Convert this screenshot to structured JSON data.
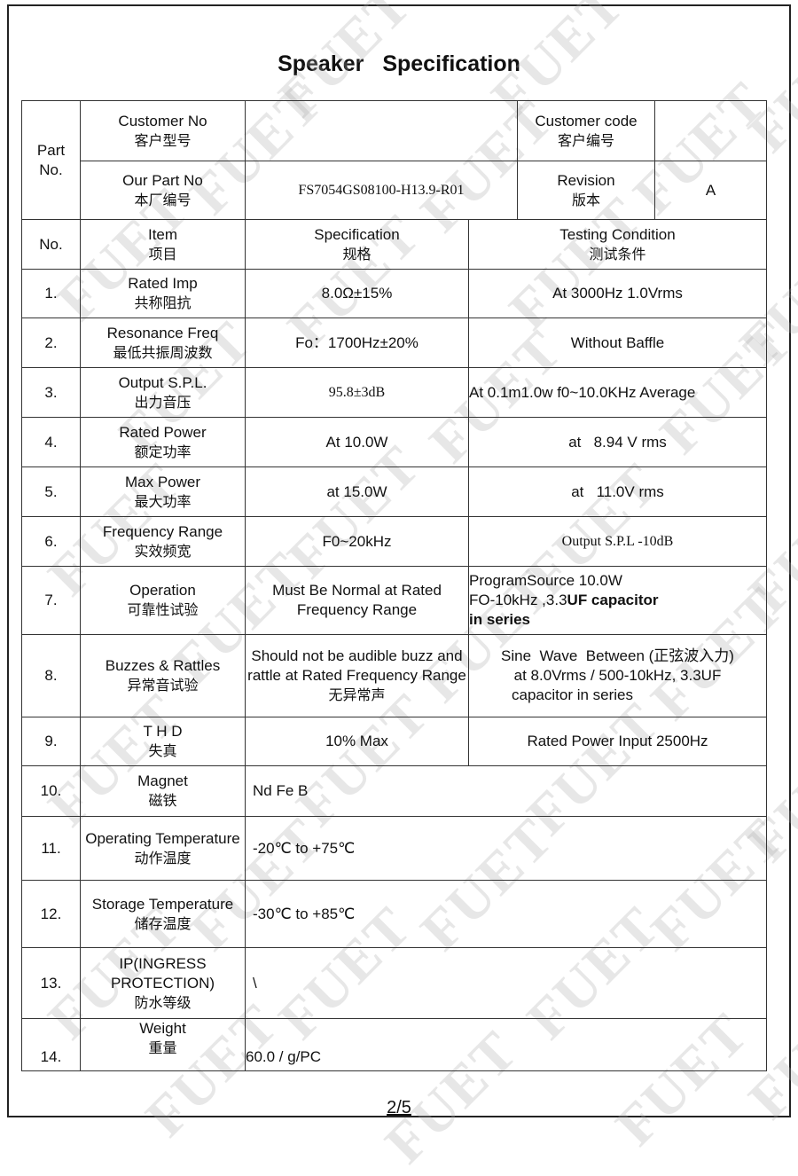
{
  "watermark": "FUET",
  "title": "Speaker Specification",
  "header": {
    "part_no": "Part No.",
    "customer_no": "Customer No",
    "customer_no_cn": "客户型号",
    "customer_no_value": "",
    "customer_code": "Customer code",
    "customer_code_cn": "客户编号",
    "customer_code_value": "",
    "our_part_no": "Our Part No",
    "our_part_no_cn": "本厂编号",
    "our_part_no_value": "FS7054GS08100-H13.9-R01",
    "revision": "Revision",
    "revision_cn": "版本",
    "revision_value": "A"
  },
  "columns": {
    "no": "No.",
    "item": "Item",
    "item_cn": "项目",
    "spec": "Specification",
    "spec_cn": "规格",
    "test": "Testing Condition",
    "test_cn": "测试条件"
  },
  "rows": [
    {
      "no": "1.",
      "item": "Rated Imp",
      "item_cn": "共称阻抗",
      "spec": "8.0Ω±15%",
      "test": "At 3000Hz 1.0Vrms"
    },
    {
      "no": "2.",
      "item": "Resonance Freq",
      "item_cn": "最低共振周波数",
      "spec": "Fo：1700Hz±20%",
      "test": "Without Baffle"
    },
    {
      "no": "3.",
      "item": "Output S.P.L.",
      "item_cn": "出力音压",
      "spec": "95.8±3dB",
      "test": "At 0.1m1.0w f0~10.0KHz Average"
    },
    {
      "no": "4.",
      "item": "Rated Power",
      "item_cn": "额定功率",
      "spec": "At    10.0W",
      "test": "at   8.94 V rms"
    },
    {
      "no": "5.",
      "item": "Max Power",
      "item_cn": "最大功率",
      "spec": "at   15.0W",
      "test": "at   11.0V rms"
    },
    {
      "no": "6.",
      "item": "Frequency Range",
      "item_cn": "实效频宽",
      "spec": "F0~20kHz",
      "test": "Output S.P.L -10dB"
    },
    {
      "no": "7.",
      "item": "Operation",
      "item_cn": "可靠性试验",
      "spec": "Must Be Normal at Rated Frequency Range",
      "test_l1": "ProgramSource  10.0W",
      "test_l2": "FO-10kHz  ,3.3",
      "test_l2b": "UF  capacitor",
      "test_l3": "in series"
    },
    {
      "no": "8.",
      "item": "Buzzes & Rattles",
      "item_cn": "异常音试验",
      "spec": "Should not be audible buzz and rattle at Rated Frequency Range",
      "spec_cn": "无异常声",
      "test_l1": "Sine  Wave  Between (正弦波入力)",
      "test_l2": "at  8.0Vrms / 500-10kHz, 3.3UF",
      "test_l3": "capacitor in series"
    },
    {
      "no": "9.",
      "item": "T   H   D",
      "item_cn": "失真",
      "spec": "10% Max",
      "test": "Rated Power Input 2500Hz"
    },
    {
      "no": "10.",
      "item": "Magnet",
      "item_cn": "磁铁",
      "spec": "Nd Fe B"
    },
    {
      "no": "11.",
      "item": "Operating Temperature",
      "item_cn": "动作温度",
      "spec": "-20℃ to   +75℃"
    },
    {
      "no": "12.",
      "item": "Storage Temperature",
      "item_cn": "储存温度",
      "spec": "-30℃ to   +85℃"
    },
    {
      "no": "13.",
      "item": "IP(INGRESS PROTECTION)",
      "item_cn": "防水等级",
      "spec": "\\"
    },
    {
      "no": "14.",
      "item": "Weight",
      "item_cn": "重量",
      "spec": "60.0 / g/PC"
    }
  ],
  "page": "2/5"
}
